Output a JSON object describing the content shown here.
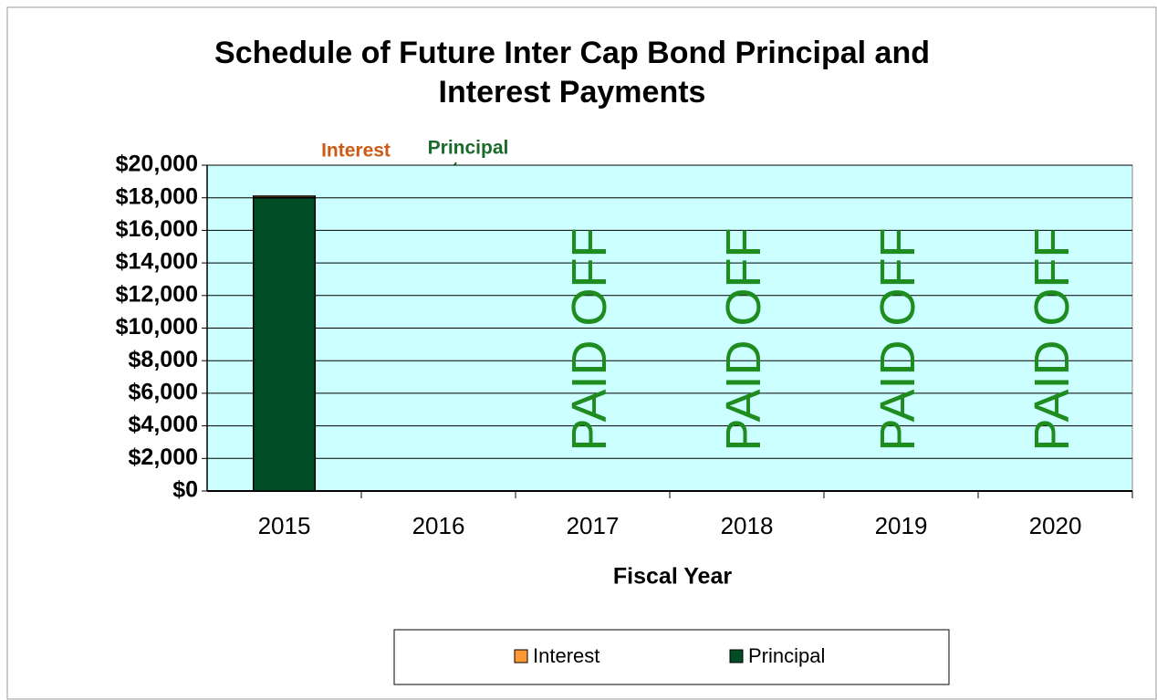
{
  "chart_data": {
    "type": "stacked_bar",
    "title": [
      "Schedule of Future Inter Cap Bond Principal and",
      "Interest Payments"
    ],
    "xlabel": "Fiscal Year",
    "categories": [
      "2015",
      "2016",
      "2017",
      "2018",
      "2019",
      "2020"
    ],
    "series": [
      {
        "name": "Principal",
        "color": "#004d26",
        "values": [
          18000,
          0,
          0,
          0,
          0,
          0
        ]
      },
      {
        "name": "Interest",
        "color": "#ff9933",
        "values": [
          100,
          0,
          0,
          0,
          0,
          0
        ]
      }
    ],
    "legend_order": [
      1,
      0
    ],
    "category_notes": [
      null,
      null,
      "PAID OFF",
      "PAID OFF",
      "PAID OFF",
      "PAID OFF"
    ],
    "annotations": [
      {
        "text": "Interest",
        "color": "#cc5a14"
      },
      {
        "text": "Principal",
        "color": "#1a6a2a"
      }
    ],
    "ylim": [
      0,
      20000
    ],
    "yticks": [
      {
        "value": 0,
        "label": "$0"
      },
      {
        "value": 2000,
        "label": "$2,000"
      },
      {
        "value": 4000,
        "label": "$4,000"
      },
      {
        "value": 6000,
        "label": "$6,000"
      },
      {
        "value": 8000,
        "label": "$8,000"
      },
      {
        "value": 10000,
        "label": "$10,000"
      },
      {
        "value": 12000,
        "label": "$12,000"
      },
      {
        "value": 14000,
        "label": "$14,000"
      },
      {
        "value": 16000,
        "label": "$16,000"
      },
      {
        "value": 18000,
        "label": "$18,000"
      },
      {
        "value": 20000,
        "label": "$20,000"
      }
    ],
    "grid": true,
    "plot_background": "#ccffff",
    "note_color": "#1e8c1e"
  }
}
